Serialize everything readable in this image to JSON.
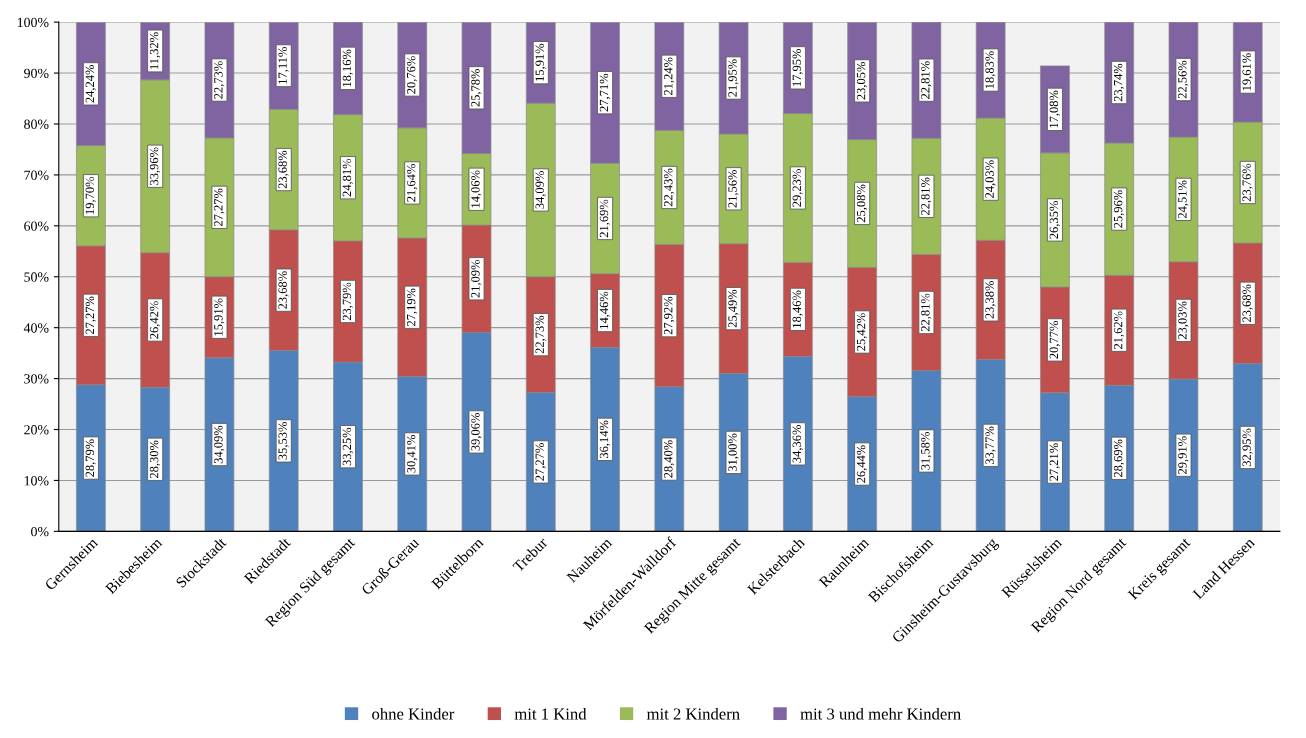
{
  "chart_data": {
    "type": "bar",
    "stacked": true,
    "categories": [
      "Gernsheim",
      "Biebesheim",
      "Stockstadt",
      "Riedstadt",
      "Region Süd gesamt",
      "Groß-Gerau",
      "Büttelborn",
      "Trebur",
      "Nauheim",
      "Mörfelden-Walldorf",
      "Region Mitte gesamt",
      "Kelsterbach",
      "Raunheim",
      "Bischofsheim",
      "Ginsheim-Gustavsburg",
      "Rüsselsheim",
      "Region Nord gesamt",
      "Kreis gesamt",
      "Land Hessen"
    ],
    "ylim": [
      0,
      100
    ],
    "yticks": [
      {
        "value": 0,
        "label": "0%"
      },
      {
        "value": 10,
        "label": "10%"
      },
      {
        "value": 20,
        "label": "20%"
      },
      {
        "value": 30,
        "label": "30%"
      },
      {
        "value": 40,
        "label": "40%"
      },
      {
        "value": 50,
        "label": "50%"
      },
      {
        "value": 60,
        "label": "60%"
      },
      {
        "value": 70,
        "label": "70%"
      },
      {
        "value": 80,
        "label": "80%"
      },
      {
        "value": 90,
        "label": "90%"
      },
      {
        "value": 100,
        "label": "100%"
      }
    ],
    "grid": "y",
    "legend": "bottom",
    "series": [
      {
        "name": "ohne Kinder",
        "color": "#4f81bd",
        "values": [
          28.79,
          28.3,
          34.09,
          35.53,
          33.25,
          30.41,
          39.06,
          27.27,
          36.14,
          28.4,
          31.0,
          34.36,
          26.44,
          31.58,
          33.77,
          27.21,
          28.69,
          29.91,
          32.95
        ],
        "value_labels": [
          "28,79%",
          "28,30%",
          "34,09%",
          "35,53%",
          "33,25%",
          "30,41%",
          "39,06%",
          "27,27%",
          "36,14%",
          "28,40%",
          "31,00%",
          "34,36%",
          "26,44%",
          "31,58%",
          "33,77%",
          "27,21%",
          "28,69%",
          "29,91%",
          "32,95%"
        ]
      },
      {
        "name": "mit 1 Kind",
        "color": "#c0504d",
        "values": [
          27.27,
          26.42,
          15.91,
          23.68,
          23.79,
          27.19,
          21.09,
          22.73,
          14.46,
          27.92,
          25.49,
          18.46,
          25.42,
          22.81,
          23.38,
          20.77,
          21.62,
          23.03,
          23.68
        ],
        "value_labels": [
          "27,27%",
          "26,42%",
          "15,91%",
          "23,68%",
          "23,79%",
          "27,19%",
          "21,09%",
          "22,73%",
          "14,46%",
          "27,92%",
          "25,49%",
          "18,46%",
          "25,42%",
          "22,81%",
          "23,38%",
          "20,77%",
          "21,62%",
          "23,03%",
          "23,68%"
        ]
      },
      {
        "name": "mit 2 Kindern",
        "color": "#9bbb59",
        "values": [
          19.7,
          33.96,
          27.27,
          23.68,
          24.81,
          21.64,
          14.06,
          34.09,
          21.69,
          22.43,
          21.56,
          29.23,
          25.08,
          22.81,
          24.03,
          26.35,
          25.96,
          24.51,
          23.76
        ],
        "value_labels": [
          "19,70%",
          "33,96%",
          "27,27%",
          "23,68%",
          "24,81%",
          "21,64%",
          "14,06%",
          "34,09%",
          "21,69%",
          "22,43%",
          "21,56%",
          "29,23%",
          "25,08%",
          "22,81%",
          "24,03%",
          "26,35%",
          "25,96%",
          "24,51%",
          "23,76%"
        ]
      },
      {
        "name": "mit 3 und mehr Kindern",
        "color": "#8064a2",
        "values": [
          24.24,
          11.32,
          22.73,
          17.11,
          18.16,
          20.76,
          25.78,
          15.91,
          27.71,
          21.24,
          21.95,
          17.95,
          23.05,
          22.81,
          18.83,
          17.08,
          23.74,
          22.56,
          19.61
        ],
        "value_labels": [
          "24,24%",
          "11,32%",
          "22,73%",
          "17,11%",
          "18,16%",
          "20,76%",
          "25,78%",
          "15,91%",
          "27,71%",
          "21,24%",
          "21,95%",
          "17,95%",
          "23,05%",
          "22,81%",
          "18,83%",
          "17,08%",
          "23,74%",
          "22,56%",
          "19,61%"
        ]
      }
    ]
  }
}
